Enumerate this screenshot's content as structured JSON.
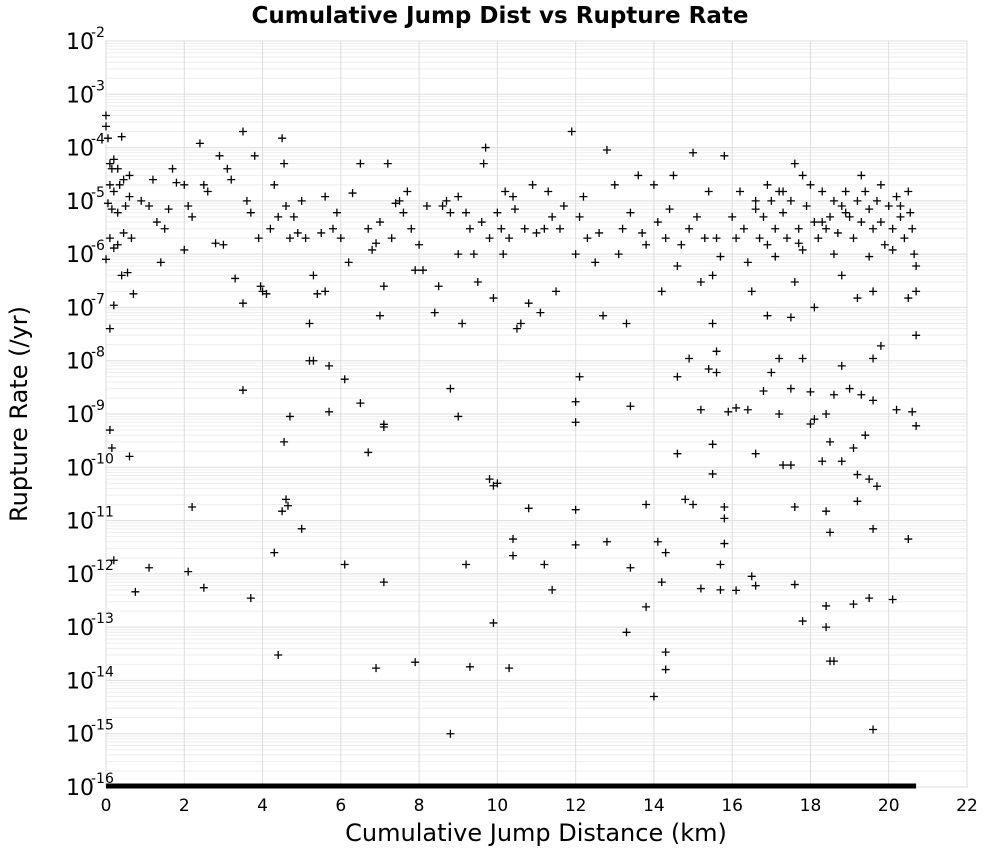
{
  "chart_data": {
    "type": "scatter",
    "title": "Cumulative Jump Dist vs Rupture Rate",
    "xlabel": "Cumulative Jump Distance (km)",
    "ylabel": "Rupture Rate (/yr)",
    "xlim": [
      0,
      22
    ],
    "ylim": [
      1e-16,
      0.01
    ],
    "y_scale": "log",
    "grid": true,
    "marker": "plus",
    "marker_color": "#000000",
    "x_ticks": [
      "0",
      "2",
      "4",
      "6",
      "8",
      "10",
      "12",
      "14",
      "16",
      "18",
      "20",
      "22"
    ],
    "y_ticks": [
      {
        "base": "10",
        "exp": "-2"
      },
      {
        "base": "10",
        "exp": "-3"
      },
      {
        "base": "10",
        "exp": "-4"
      },
      {
        "base": "10",
        "exp": "-5"
      },
      {
        "base": "10",
        "exp": "-6"
      },
      {
        "base": "10",
        "exp": "-7"
      },
      {
        "base": "10",
        "exp": "-8"
      },
      {
        "base": "10",
        "exp": "-9"
      },
      {
        "base": "10",
        "exp": "-10"
      },
      {
        "base": "10",
        "exp": "-11"
      },
      {
        "base": "10",
        "exp": "-12"
      },
      {
        "base": "10",
        "exp": "-13"
      },
      {
        "base": "10",
        "exp": "-14"
      },
      {
        "base": "10",
        "exp": "-15"
      },
      {
        "base": "10",
        "exp": "-16"
      }
    ],
    "floor_band": {
      "y": 1e-16,
      "x": [
        0,
        20.7
      ]
    },
    "points": [
      [
        0.0,
        0.0004
      ],
      [
        0.0,
        0.00025
      ],
      [
        0.05,
        0.00015
      ],
      [
        0.1,
        5e-05
      ],
      [
        0.15,
        4e-05
      ],
      [
        0.2,
        6e-05
      ],
      [
        0.3,
        4e-05
      ],
      [
        0.1,
        2e-05
      ],
      [
        0.2,
        1.5e-05
      ],
      [
        0.35,
        2e-05
      ],
      [
        0.45,
        2.5e-05
      ],
      [
        0.6,
        3e-05
      ],
      [
        0.05,
        9e-06
      ],
      [
        0.15,
        7e-06
      ],
      [
        0.3,
        6e-06
      ],
      [
        0.5,
        8e-06
      ],
      [
        0.6,
        1.2e-05
      ],
      [
        0.1,
        2e-06
      ],
      [
        0.2,
        1.3e-06
      ],
      [
        0.3,
        1.5e-06
      ],
      [
        0.45,
        2.5e-06
      ],
      [
        0.65,
        2e-06
      ],
      [
        0.0,
        8e-07
      ],
      [
        0.4,
        4e-07
      ],
      [
        0.55,
        4.5e-07
      ],
      [
        0.7,
        1.8e-07
      ],
      [
        0.2,
        1.1e-07
      ],
      [
        0.1,
        4e-08
      ],
      [
        0.4,
        0.00016
      ],
      [
        0.9,
        1e-05
      ],
      [
        1.1,
        8e-06
      ],
      [
        1.3,
        4e-06
      ],
      [
        1.5,
        3e-06
      ],
      [
        1.2,
        2.5e-05
      ],
      [
        1.6,
        7e-06
      ],
      [
        1.7,
        4e-05
      ],
      [
        1.8,
        2.2e-05
      ],
      [
        2.0,
        2e-05
      ],
      [
        2.1,
        8e-06
      ],
      [
        2.2,
        5e-06
      ],
      [
        2.4,
        0.00012
      ],
      [
        2.6,
        1.5e-05
      ],
      [
        2.8,
        1.6e-06
      ],
      [
        2.9,
        7e-05
      ],
      [
        3.0,
        1.5e-06
      ],
      [
        3.2,
        2.5e-05
      ],
      [
        3.3,
        3.5e-07
      ],
      [
        3.5,
        0.0002
      ],
      [
        3.6,
        1e-05
      ],
      [
        3.7,
        6e-06
      ],
      [
        3.9,
        2e-06
      ],
      [
        3.95,
        2.5e-07
      ],
      [
        4.1,
        1.8e-07
      ],
      [
        4.2,
        3e-06
      ],
      [
        4.4,
        5e-06
      ],
      [
        4.5,
        0.00015
      ],
      [
        4.6,
        8e-06
      ],
      [
        4.7,
        2e-06
      ],
      [
        4.8,
        5e-06
      ],
      [
        4.9,
        2.5e-06
      ],
      [
        5.0,
        1e-05
      ],
      [
        1.4,
        7e-07
      ],
      [
        2.0,
        1.2e-06
      ],
      [
        2.5,
        2e-05
      ],
      [
        3.1,
        4e-05
      ],
      [
        3.5,
        1.2e-07
      ],
      [
        3.8,
        7e-05
      ],
      [
        4.3,
        2e-05
      ],
      [
        4.55,
        5e-05
      ],
      [
        4.0,
        2e-07
      ],
      [
        5.1,
        2e-06
      ],
      [
        5.3,
        4e-07
      ],
      [
        5.4,
        1.8e-07
      ],
      [
        5.5,
        2.5e-06
      ],
      [
        5.6,
        1.2e-05
      ],
      [
        5.8,
        3e-06
      ],
      [
        5.9,
        6e-06
      ],
      [
        6.0,
        2e-06
      ],
      [
        6.2,
        7e-07
      ],
      [
        6.3,
        1.4e-05
      ],
      [
        6.5,
        5e-05
      ],
      [
        6.7,
        3e-06
      ],
      [
        6.8,
        1.2e-06
      ],
      [
        7.0,
        4e-06
      ],
      [
        7.1,
        2.5e-07
      ],
      [
        7.2,
        5e-05
      ],
      [
        7.3,
        2e-06
      ],
      [
        7.5,
        1e-05
      ],
      [
        7.6,
        6e-06
      ],
      [
        7.7,
        1.5e-05
      ],
      [
        7.8,
        3e-06
      ],
      [
        8.0,
        1.5e-06
      ],
      [
        8.1,
        5e-07
      ],
      [
        8.2,
        8e-06
      ],
      [
        8.4,
        8e-08
      ],
      [
        8.5,
        2.5e-07
      ],
      [
        8.7,
        1e-05
      ],
      [
        8.8,
        6e-06
      ],
      [
        9.0,
        1.2e-05
      ],
      [
        9.1,
        5e-08
      ],
      [
        9.2,
        6e-06
      ],
      [
        9.3,
        3e-06
      ],
      [
        9.4,
        1e-06
      ],
      [
        9.5,
        3e-07
      ],
      [
        9.6,
        4e-06
      ],
      [
        9.7,
        0.0001
      ],
      [
        9.8,
        2e-06
      ],
      [
        9.9,
        1.5e-07
      ],
      [
        10.0,
        6e-06
      ],
      [
        5.2,
        5e-08
      ],
      [
        5.6,
        2e-07
      ],
      [
        6.9,
        1.6e-06
      ],
      [
        7.4,
        9e-06
      ],
      [
        7.9,
        5e-07
      ],
      [
        8.6,
        8e-06
      ],
      [
        9.0,
        1e-06
      ],
      [
        9.65,
        5e-05
      ],
      [
        10.1,
        3e-06
      ],
      [
        10.2,
        1.5e-05
      ],
      [
        10.3,
        2e-06
      ],
      [
        10.4,
        1.2e-05
      ],
      [
        10.5,
        4e-08
      ],
      [
        10.6,
        5e-08
      ],
      [
        10.7,
        3e-06
      ],
      [
        10.8,
        1.2e-07
      ],
      [
        10.9,
        2e-05
      ],
      [
        11.0,
        2.5e-06
      ],
      [
        11.1,
        8e-08
      ],
      [
        11.2,
        3e-06
      ],
      [
        11.3,
        1.5e-05
      ],
      [
        11.4,
        5e-06
      ],
      [
        11.5,
        2e-07
      ],
      [
        11.7,
        8e-06
      ],
      [
        11.9,
        0.0002
      ],
      [
        12.0,
        1e-06
      ],
      [
        12.2,
        1.2e-05
      ],
      [
        12.3,
        2e-06
      ],
      [
        12.5,
        7e-07
      ],
      [
        12.6,
        2.5e-06
      ],
      [
        12.8,
        9e-05
      ],
      [
        13.0,
        2e-05
      ],
      [
        13.1,
        1e-06
      ],
      [
        13.3,
        5e-08
      ],
      [
        13.4,
        6e-06
      ],
      [
        13.6,
        3e-05
      ],
      [
        13.7,
        2.5e-06
      ],
      [
        13.8,
        1.5e-06
      ],
      [
        14.0,
        2e-05
      ],
      [
        14.1,
        4e-06
      ],
      [
        14.3,
        2e-06
      ],
      [
        14.4,
        7e-06
      ],
      [
        14.5,
        3e-05
      ],
      [
        14.7,
        1.5e-06
      ],
      [
        14.9,
        3e-06
      ],
      [
        15.0,
        8e-05
      ],
      [
        10.15,
        1e-06
      ],
      [
        10.45,
        7e-06
      ],
      [
        11.6,
        3e-06
      ],
      [
        12.1,
        5e-06
      ],
      [
        12.7,
        7e-08
      ],
      [
        13.2,
        3e-06
      ],
      [
        14.2,
        2e-07
      ],
      [
        14.6,
        6e-07
      ],
      [
        15.1,
        5e-06
      ],
      [
        15.3,
        2e-06
      ],
      [
        15.4,
        1.5e-05
      ],
      [
        15.5,
        4e-07
      ],
      [
        15.6,
        2e-06
      ],
      [
        15.8,
        7e-05
      ],
      [
        16.0,
        5e-06
      ],
      [
        16.1,
        2e-06
      ],
      [
        16.2,
        1.5e-05
      ],
      [
        16.3,
        3e-06
      ],
      [
        16.4,
        7e-07
      ],
      [
        16.6,
        1e-05
      ],
      [
        16.7,
        2e-06
      ],
      [
        16.8,
        5e-06
      ],
      [
        16.9,
        1.5e-06
      ],
      [
        17.0,
        1e-05
      ],
      [
        17.1,
        3e-06
      ],
      [
        17.2,
        1.5e-05
      ],
      [
        17.3,
        6e-06
      ],
      [
        17.4,
        2e-06
      ],
      [
        17.5,
        1e-05
      ],
      [
        17.6,
        5e-05
      ],
      [
        17.7,
        3e-06
      ],
      [
        17.8,
        1.2e-06
      ],
      [
        17.9,
        8e-06
      ],
      [
        18.0,
        2e-05
      ],
      [
        18.1,
        4e-06
      ],
      [
        18.2,
        2e-06
      ],
      [
        18.3,
        1.5e-05
      ],
      [
        18.4,
        3e-06
      ],
      [
        18.5,
        5e-06
      ],
      [
        18.6,
        1e-05
      ],
      [
        18.7,
        2.5e-06
      ],
      [
        18.8,
        8e-06
      ],
      [
        18.9,
        1.5e-05
      ],
      [
        19.0,
        5e-06
      ],
      [
        19.1,
        2e-06
      ],
      [
        19.2,
        1e-05
      ],
      [
        19.3,
        4e-06
      ],
      [
        19.4,
        1.5e-05
      ],
      [
        19.5,
        7e-06
      ],
      [
        19.6,
        3e-06
      ],
      [
        19.7,
        1e-05
      ],
      [
        19.8,
        4e-06
      ],
      [
        19.9,
        1.5e-06
      ],
      [
        20.0,
        8e-06
      ],
      [
        20.1,
        3e-06
      ],
      [
        20.2,
        1.2e-05
      ],
      [
        20.3,
        5e-06
      ],
      [
        20.4,
        2e-06
      ],
      [
        20.5,
        1.5e-05
      ],
      [
        20.55,
        6e-06
      ],
      [
        20.6,
        3e-06
      ],
      [
        20.65,
        1e-06
      ],
      [
        20.7,
        6e-07
      ],
      [
        15.2,
        3e-07
      ],
      [
        15.7,
        9e-07
      ],
      [
        16.5,
        2e-07
      ],
      [
        17.6,
        3e-07
      ],
      [
        18.1,
        1e-07
      ],
      [
        18.8,
        4e-07
      ],
      [
        19.2,
        1.5e-07
      ],
      [
        19.6,
        2e-07
      ],
      [
        20.5,
        1.5e-07
      ],
      [
        20.7,
        2e-07
      ],
      [
        16.9,
        2e-05
      ],
      [
        17.3,
        1.5e-05
      ],
      [
        17.8,
        3e-05
      ],
      [
        18.3,
        4e-06
      ],
      [
        18.9,
        6e-06
      ],
      [
        19.3,
        3e-05
      ],
      [
        19.8,
        2e-05
      ],
      [
        20.3,
        8e-06
      ],
      [
        16.6,
        7e-06
      ],
      [
        17.1,
        9e-07
      ],
      [
        17.7,
        1.6e-06
      ],
      [
        18.6,
        1e-06
      ],
      [
        19.5,
        9e-07
      ],
      [
        20.1,
        1.2e-06
      ],
      [
        0.1,
        5e-10
      ],
      [
        0.15,
        2.3e-10
      ],
      [
        0.6,
        1.6e-10
      ],
      [
        0.2,
        1.8e-12
      ],
      [
        1.1,
        1.3e-12
      ],
      [
        0.75,
        4.6e-13
      ],
      [
        2.1,
        1.1e-12
      ],
      [
        2.2,
        1.8e-11
      ],
      [
        2.5,
        5.5e-13
      ],
      [
        3.5,
        2.8e-09
      ],
      [
        3.7,
        3.5e-13
      ],
      [
        4.3,
        2.5e-12
      ],
      [
        4.4,
        3e-14
      ],
      [
        4.55,
        3e-10
      ],
      [
        4.6,
        2.5e-11
      ],
      [
        4.65,
        1.9e-11
      ],
      [
        4.7,
        9e-10
      ],
      [
        4.5,
        1.5e-11
      ],
      [
        5.0,
        7e-12
      ],
      [
        5.2,
        1e-08
      ],
      [
        5.3,
        1e-08
      ],
      [
        5.7,
        8e-09
      ],
      [
        5.7,
        1.1e-09
      ],
      [
        6.1,
        4.5e-09
      ],
      [
        6.1,
        1.5e-12
      ],
      [
        6.5,
        1.6e-09
      ],
      [
        6.7,
        1.9e-10
      ],
      [
        6.9,
        1.7e-14
      ],
      [
        7.1,
        7e-13
      ],
      [
        7.1,
        5.7e-10
      ],
      [
        7.1,
        6.4e-10
      ],
      [
        7.0,
        7e-08
      ],
      [
        7.9,
        2.2e-14
      ],
      [
        8.8,
        3e-09
      ],
      [
        8.8,
        1e-15
      ],
      [
        9.0,
        9e-10
      ],
      [
        9.2,
        1.5e-12
      ],
      [
        9.3,
        1.8e-14
      ],
      [
        9.8,
        6e-11
      ],
      [
        9.9,
        4.5e-11
      ],
      [
        9.9,
        1.2e-13
      ],
      [
        10.0,
        5e-11
      ],
      [
        10.3,
        1.7e-14
      ],
      [
        10.4,
        2.2e-12
      ],
      [
        10.4,
        4.5e-12
      ],
      [
        10.8,
        1.7e-11
      ],
      [
        11.2,
        1.5e-12
      ],
      [
        11.4,
        5e-13
      ],
      [
        12.0,
        1.6e-11
      ],
      [
        12.0,
        3.5e-12
      ],
      [
        12.0,
        7e-10
      ],
      [
        12.0,
        1.7e-09
      ],
      [
        12.1,
        5e-09
      ],
      [
        12.8,
        4e-12
      ],
      [
        13.3,
        8e-14
      ],
      [
        13.4,
        1.3e-12
      ],
      [
        13.4,
        1.4e-09
      ],
      [
        13.8,
        2.4e-13
      ],
      [
        13.8,
        2e-11
      ],
      [
        14.0,
        5e-15
      ],
      [
        14.1,
        4e-12
      ],
      [
        14.2,
        7e-13
      ],
      [
        14.3,
        3.4e-14
      ],
      [
        14.3,
        1.6e-14
      ],
      [
        14.3,
        2.5e-12
      ],
      [
        14.6,
        1.8e-10
      ],
      [
        14.6,
        5e-09
      ],
      [
        14.8,
        2.5e-11
      ],
      [
        14.9,
        1.1e-08
      ],
      [
        15.0,
        2e-11
      ],
      [
        15.2,
        5.3e-13
      ],
      [
        15.2,
        1.2e-09
      ],
      [
        15.4,
        7e-09
      ],
      [
        15.5,
        7.5e-11
      ],
      [
        15.5,
        2.7e-10
      ],
      [
        15.6,
        6e-09
      ],
      [
        15.7,
        5e-13
      ],
      [
        15.7,
        1.5e-12
      ],
      [
        15.8,
        1.1e-11
      ],
      [
        15.8,
        1.8e-11
      ],
      [
        15.8,
        3.7e-12
      ],
      [
        15.9,
        1.1e-09
      ],
      [
        16.1,
        1.3e-09
      ],
      [
        16.1,
        4.9e-13
      ],
      [
        16.4,
        1.2e-09
      ],
      [
        16.5,
        9e-13
      ],
      [
        16.6,
        6e-13
      ],
      [
        16.6,
        1.8e-10
      ],
      [
        16.8,
        2.7e-09
      ],
      [
        17.2,
        1.1e-08
      ],
      [
        17.2,
        1e-09
      ],
      [
        17.3,
        1.1e-10
      ],
      [
        17.5,
        1.1e-10
      ],
      [
        17.5,
        3e-09
      ],
      [
        17.6,
        6.3e-13
      ],
      [
        17.6,
        1.8e-11
      ],
      [
        17.8,
        1.3e-13
      ],
      [
        17.8,
        1.1e-08
      ],
      [
        18.0,
        2.6e-09
      ],
      [
        18.0,
        6.5e-10
      ],
      [
        18.1,
        8e-10
      ],
      [
        18.3,
        1.3e-10
      ],
      [
        18.4,
        1e-09
      ],
      [
        18.4,
        1.5e-11
      ],
      [
        18.4,
        2.5e-13
      ],
      [
        18.4,
        1e-13
      ],
      [
        18.5,
        2.3e-14
      ],
      [
        18.6,
        2.3e-14
      ],
      [
        18.5,
        6e-12
      ],
      [
        18.5,
        3e-10
      ],
      [
        18.6,
        2.3e-09
      ],
      [
        18.8,
        8e-09
      ],
      [
        18.8,
        1.3e-10
      ],
      [
        19.0,
        3e-09
      ],
      [
        19.1,
        2.3e-10
      ],
      [
        19.2,
        7.3e-11
      ],
      [
        19.2,
        2.3e-11
      ],
      [
        19.3,
        2.3e-09
      ],
      [
        19.4,
        4e-10
      ],
      [
        19.5,
        6e-11
      ],
      [
        19.6,
        1.8e-09
      ],
      [
        19.6,
        7e-12
      ],
      [
        19.6,
        1.2e-15
      ],
      [
        19.7,
        4.4e-11
      ],
      [
        19.5,
        3.5e-13
      ],
      [
        19.1,
        2.7e-13
      ],
      [
        20.1,
        3.3e-13
      ],
      [
        20.2,
        1.2e-09
      ],
      [
        20.5,
        4.5e-12
      ],
      [
        20.6,
        1.1e-09
      ],
      [
        20.7,
        6e-10
      ],
      [
        20.7,
        3e-08
      ],
      [
        19.8,
        1.9e-08
      ],
      [
        19.6,
        1.1e-08
      ],
      [
        17.5,
        6.5e-08
      ],
      [
        16.9,
        7e-08
      ],
      [
        15.5,
        5e-08
      ],
      [
        15.6,
        1.5e-08
      ],
      [
        17.0,
        6e-09
      ]
    ]
  }
}
